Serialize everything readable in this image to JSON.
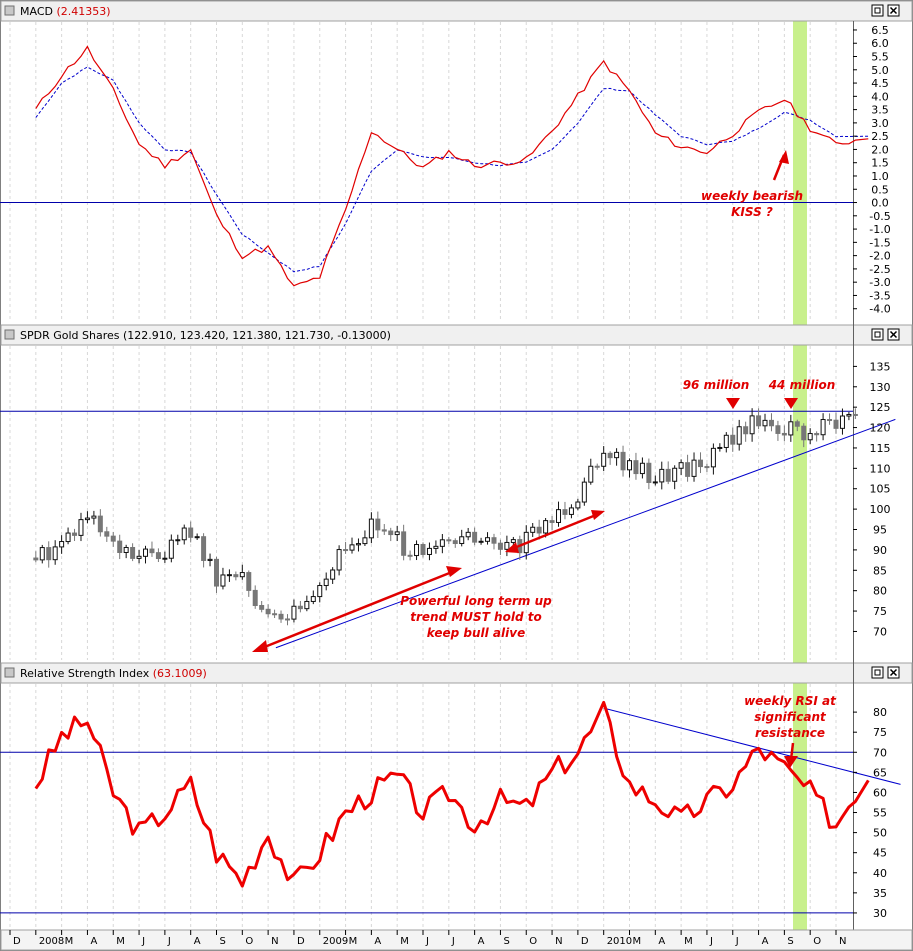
{
  "panels": {
    "macd": {
      "title": "MACD",
      "value": "(2.41353)"
    },
    "price": {
      "title": "SPDR Gold Shares",
      "value": "(122.910, 123.420, 121.380, 121.730, -0.13000)"
    },
    "rsi": {
      "title": "Relative Strength Index",
      "value": "(63.1009)"
    }
  },
  "annotations": {
    "macd_kiss": [
      "weekly bearish",
      "KISS ?"
    ],
    "million_96": "96 million",
    "million_44": "44 million",
    "uptrend": [
      "Powerful long term up",
      "trend MUST hold to",
      "keep bull alive"
    ],
    "rsi_resistance": [
      "weekly RSI at",
      "significant",
      "resistance"
    ]
  },
  "colors": {
    "macd": "#e00000",
    "signal": "#0000cc",
    "rsi": "#ee0000",
    "trend": "#0000cc",
    "highlight": "#c8f08c",
    "annotation": "#e00000",
    "candle_up": "#111111",
    "candle_down": "#777777"
  },
  "chart_data": [
    {
      "type": "line",
      "x": [
        "2008-01",
        "2008-02",
        "2008-03",
        "2008-04",
        "2008-05",
        "2008-06",
        "2008-07",
        "2008-08",
        "2008-09",
        "2008-10",
        "2008-11",
        "2008-12",
        "2009-01",
        "2009-02",
        "2009-03",
        "2009-04",
        "2009-05",
        "2009-06",
        "2009-07",
        "2009-08",
        "2009-09",
        "2009-10",
        "2009-11",
        "2009-12",
        "2010-01",
        "2010-02",
        "2010-03",
        "2010-04",
        "2010-05",
        "2010-06",
        "2010-07",
        "2010-08",
        "2010-09"
      ],
      "series": [
        {
          "values": [
            3.5,
            4.8,
            5.8,
            4.2,
            2.2,
            1.4,
            2.0,
            -0.5,
            -2.0,
            -1.7,
            -3.2,
            -2.8,
            -0.3,
            2.7,
            2.0,
            1.3,
            1.9,
            1.4,
            1.5,
            1.6,
            2.7,
            4.0,
            5.3,
            4.2,
            2.6,
            2.1,
            1.9,
            2.6,
            3.4,
            3.9,
            2.8,
            2.2,
            2.4
          ]
        },
        {
          "values": [
            3.2,
            4.5,
            5.1,
            4.6,
            3.0,
            2.0,
            1.9,
            0.3,
            -1.2,
            -1.9,
            -2.6,
            -2.4,
            -0.8,
            1.2,
            2.0,
            1.7,
            1.7,
            1.5,
            1.4,
            1.5,
            2.0,
            3.0,
            4.3,
            4.2,
            3.3,
            2.5,
            2.2,
            2.3,
            2.8,
            3.4,
            3.1,
            2.5,
            2.5
          ]
        }
      ],
      "ylim": [
        -4.5,
        6.8
      ],
      "yticks": [
        "6.5",
        "6.0",
        "5.5",
        "5.0",
        "4.5",
        "4.0",
        "3.5",
        "3.0",
        "2.5",
        "2.0",
        "1.5",
        "1.0",
        "0.5",
        "0.0",
        "-0.5",
        "-1.0",
        "-1.5",
        "-2.0",
        "-2.5",
        "-3.0",
        "-3.5",
        "-4.0"
      ],
      "reference_line": 0
    },
    {
      "type": "candlestick",
      "x": [
        "2008-01",
        "2008-02",
        "2008-03",
        "2008-04",
        "2008-05",
        "2008-06",
        "2008-07",
        "2008-08",
        "2008-09",
        "2008-10",
        "2008-11",
        "2008-12",
        "2009-01",
        "2009-02",
        "2009-03",
        "2009-04",
        "2009-05",
        "2009-06",
        "2009-07",
        "2009-08",
        "2009-09",
        "2009-10",
        "2009-11",
        "2009-12",
        "2010-01",
        "2010-02",
        "2010-03",
        "2010-04",
        "2010-05",
        "2010-06",
        "2010-07",
        "2010-08",
        "2010-09"
      ],
      "series": [
        {
          "values": [
            88,
            92,
            98,
            90,
            88,
            90,
            95,
            82,
            85,
            72,
            75,
            82,
            90,
            96,
            92,
            88,
            92,
            93,
            90,
            92,
            98,
            104,
            116,
            110,
            108,
            110,
            112,
            118,
            122,
            120,
            118,
            121,
            123
          ]
        }
      ],
      "ylim": [
        63,
        140
      ],
      "yticks": [
        "135",
        "130",
        "125",
        "120",
        "115",
        "110",
        "105",
        "100",
        "95",
        "90",
        "85",
        "80",
        "75",
        "70"
      ],
      "resistance": 124,
      "trendline": [
        [
          "2008-10",
          66
        ],
        [
          "2010-10",
          122
        ]
      ]
    },
    {
      "type": "line",
      "x": [
        "2008-01",
        "2008-02",
        "2008-03",
        "2008-04",
        "2008-05",
        "2008-06",
        "2008-07",
        "2008-08",
        "2008-09",
        "2008-10",
        "2008-11",
        "2008-12",
        "2009-01",
        "2009-02",
        "2009-03",
        "2009-04",
        "2009-05",
        "2009-06",
        "2009-07",
        "2009-08",
        "2009-09",
        "2009-10",
        "2009-11",
        "2009-12",
        "2010-01",
        "2010-02",
        "2010-03",
        "2010-04",
        "2010-05",
        "2010-06",
        "2010-07",
        "2010-08",
        "2010-09"
      ],
      "series": [
        {
          "values": [
            62,
            74,
            78,
            60,
            50,
            55,
            62,
            45,
            38,
            50,
            37,
            45,
            55,
            60,
            64,
            55,
            60,
            52,
            58,
            56,
            65,
            70,
            80,
            62,
            58,
            53,
            58,
            62,
            71,
            66,
            60,
            52,
            63
          ]
        }
      ],
      "ylim": [
        26,
        87
      ],
      "yticks": [
        "80",
        "75",
        "70",
        "65",
        "60",
        "55",
        "50",
        "45",
        "40",
        "35",
        "30"
      ],
      "overbought": 70,
      "oversold": 30,
      "trendline": [
        [
          "2009-11",
          81
        ],
        [
          "2010-10",
          62
        ]
      ]
    }
  ],
  "x_axis_labels": [
    "D",
    "2008",
    "M",
    "A",
    "M",
    "J",
    "J",
    "A",
    "S",
    "O",
    "N",
    "D",
    "2009",
    "M",
    "A",
    "M",
    "J",
    "J",
    "A",
    "S",
    "O",
    "N",
    "D",
    "2010",
    "M",
    "A",
    "M",
    "J",
    "J",
    "A",
    "S",
    "O",
    "N"
  ]
}
